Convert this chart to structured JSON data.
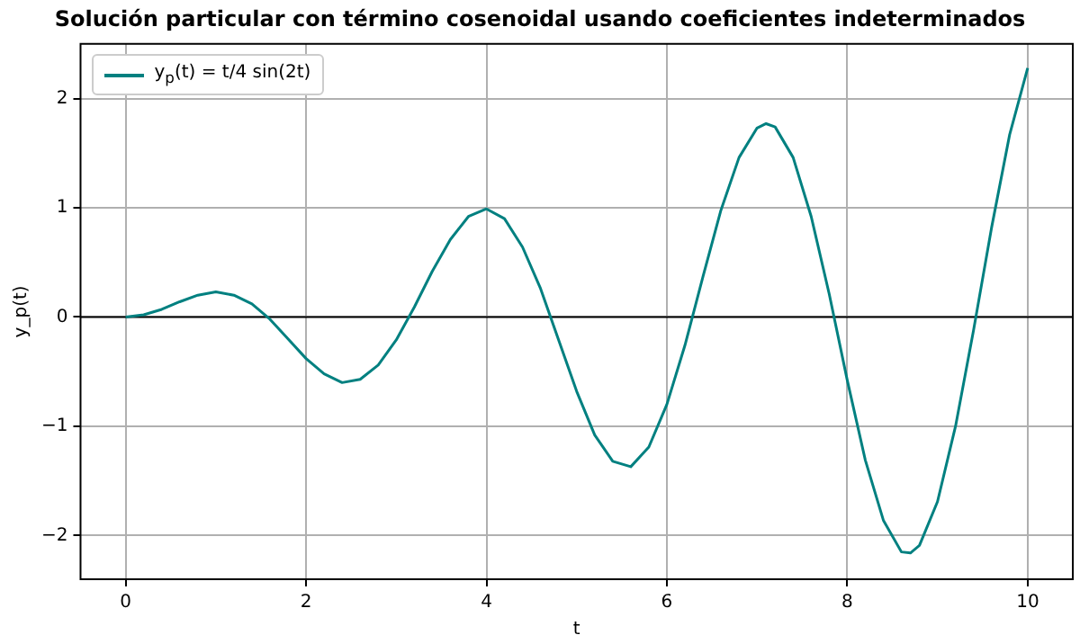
{
  "chart_data": {
    "type": "line",
    "title": "Solución particular con término cosenoidal usando coeficientes indeterminados",
    "xlabel": "t",
    "ylabel": "y_p(t)",
    "x": [
      0,
      0.2,
      0.4,
      0.6,
      0.8,
      1.0,
      1.2,
      1.4,
      1.6,
      1.8,
      2.0,
      2.2,
      2.4,
      2.6,
      2.8,
      3.0,
      3.2,
      3.4,
      3.6,
      3.8,
      4.0,
      4.2,
      4.4,
      4.6,
      4.8,
      5.0,
      5.2,
      5.4,
      5.6,
      5.8,
      6.0,
      6.2,
      6.4,
      6.6,
      6.8,
      7.0,
      7.1,
      7.2,
      7.4,
      7.6,
      7.8,
      8.0,
      8.2,
      8.4,
      8.6,
      8.7,
      8.8,
      9.0,
      9.2,
      9.4,
      9.6,
      9.8,
      10.0
    ],
    "series": [
      {
        "name": "y$_{p}$(t) = t/4 sin(2t)",
        "color": "#008080",
        "values": [
          0,
          0.02,
          0.07,
          0.14,
          0.2,
          0.23,
          0.2,
          0.12,
          -0.02,
          -0.2,
          -0.38,
          -0.52,
          -0.6,
          -0.57,
          -0.44,
          -0.21,
          0.09,
          0.42,
          0.71,
          0.92,
          0.99,
          0.9,
          0.64,
          0.26,
          -0.21,
          -0.68,
          -1.08,
          -1.32,
          -1.37,
          -1.19,
          -0.8,
          -0.26,
          0.37,
          0.98,
          1.46,
          1.73,
          1.77,
          1.74,
          1.46,
          0.92,
          0.21,
          -0.58,
          -1.31,
          -1.86,
          -2.15,
          -2.16,
          -2.09,
          -1.69,
          -1,
          -0.12,
          0.82,
          1.67,
          2.28
        ]
      }
    ],
    "xlim": [
      -0.5,
      10.5
    ],
    "ylim": [
      -2.4,
      2.5
    ],
    "xticks": [
      0,
      2,
      4,
      6,
      8,
      10
    ],
    "yticks": [
      {
        "value": -2,
        "label": "−2"
      },
      {
        "value": -1,
        "label": "−1"
      },
      0,
      1,
      2
    ],
    "ref_lines": [
      {
        "axis": "y",
        "value": 0,
        "color": "#000000"
      }
    ],
    "grid": true,
    "legend": "top left",
    "marker": "none",
    "line_style": "solid"
  }
}
